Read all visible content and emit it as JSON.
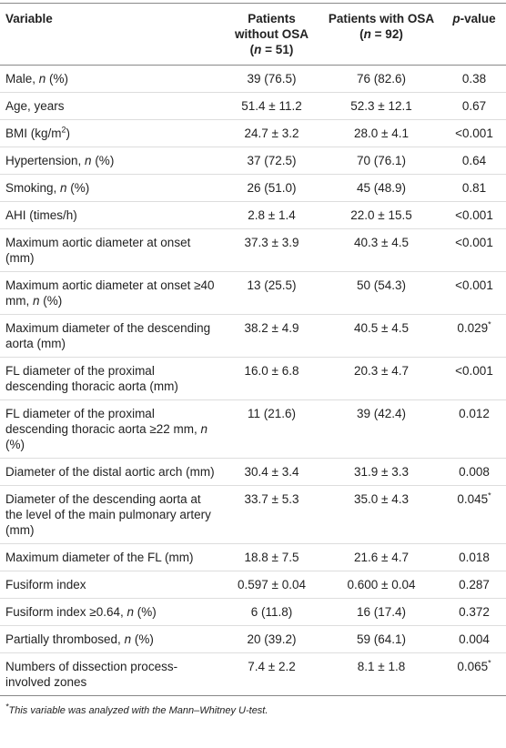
{
  "table": {
    "header": [
      [
        "Variable"
      ],
      [
        "Patients without OSA (",
        {
          "italic": "n"
        },
        " = 51)"
      ],
      [
        "Patients with OSA (",
        {
          "italic": "n"
        },
        " = 92)"
      ],
      [
        {
          "italic": "p"
        },
        "-value"
      ]
    ],
    "rows": [
      [
        [
          "Male, ",
          {
            "italic": "n"
          },
          " (%)"
        ],
        [
          "39 (76.5)"
        ],
        [
          "76 (82.6)"
        ],
        [
          "0.38"
        ]
      ],
      [
        [
          "Age, years"
        ],
        [
          "51.4 ± 11.2"
        ],
        [
          "52.3 ± 12.1"
        ],
        [
          "0.67"
        ]
      ],
      [
        [
          "BMI (kg/m",
          {
            "sup": "2"
          },
          ")"
        ],
        [
          "24.7 ± 3.2"
        ],
        [
          "28.0 ± 4.1"
        ],
        [
          "<0.001"
        ]
      ],
      [
        [
          "Hypertension, ",
          {
            "italic": "n"
          },
          " (%)"
        ],
        [
          "37 (72.5)"
        ],
        [
          "70 (76.1)"
        ],
        [
          "0.64"
        ]
      ],
      [
        [
          "Smoking, ",
          {
            "italic": "n"
          },
          " (%)"
        ],
        [
          "26 (51.0)"
        ],
        [
          "45 (48.9)"
        ],
        [
          "0.81"
        ]
      ],
      [
        [
          "AHI (times/h)"
        ],
        [
          "2.8 ± 1.4"
        ],
        [
          "22.0 ± 15.5"
        ],
        [
          "<0.001"
        ]
      ],
      [
        [
          "Maximum aortic diameter at onset (mm)"
        ],
        [
          "37.3 ± 3.9"
        ],
        [
          "40.3 ± 4.5"
        ],
        [
          "<0.001"
        ]
      ],
      [
        [
          "Maximum aortic diameter at onset ≥40 mm, ",
          {
            "italic": "n"
          },
          " (%)"
        ],
        [
          "13 (25.5)"
        ],
        [
          "50 (54.3)"
        ],
        [
          "<0.001"
        ]
      ],
      [
        [
          "Maximum diameter of the descending aorta (mm)"
        ],
        [
          "38.2 ± 4.9"
        ],
        [
          "40.5 ± 4.5"
        ],
        [
          "0.029",
          {
            "sup": "*"
          }
        ]
      ],
      [
        [
          "FL diameter of the proximal descending thoracic aorta (mm)"
        ],
        [
          "16.0 ± 6.8"
        ],
        [
          "20.3 ± 4.7"
        ],
        [
          "<0.001"
        ]
      ],
      [
        [
          "FL diameter of the proximal descending thoracic aorta ≥22 mm, ",
          {
            "italic": "n"
          },
          " (%)"
        ],
        [
          "11 (21.6)"
        ],
        [
          "39 (42.4)"
        ],
        [
          "0.012"
        ]
      ],
      [
        [
          "Diameter of the distal aortic arch (mm)"
        ],
        [
          "30.4 ± 3.4"
        ],
        [
          "31.9 ± 3.3"
        ],
        [
          "0.008"
        ]
      ],
      [
        [
          "Diameter of the descending aorta at the level of the main pulmonary artery (mm)"
        ],
        [
          "33.7 ± 5.3"
        ],
        [
          "35.0 ± 4.3"
        ],
        [
          "0.045",
          {
            "sup": "*"
          }
        ]
      ],
      [
        [
          "Maximum diameter of the FL (mm)"
        ],
        [
          "18.8 ± 7.5"
        ],
        [
          "21.6 ± 4.7"
        ],
        [
          "0.018"
        ]
      ],
      [
        [
          "Fusiform index"
        ],
        [
          "0.597 ± 0.04"
        ],
        [
          "0.600 ± 0.04"
        ],
        [
          "0.287"
        ]
      ],
      [
        [
          "Fusiform index ≥0.64, ",
          {
            "italic": "n"
          },
          " (%)"
        ],
        [
          "6 (11.8)"
        ],
        [
          "16 (17.4)"
        ],
        [
          "0.372"
        ]
      ],
      [
        [
          "Partially thrombosed, ",
          {
            "italic": "n"
          },
          " (%)"
        ],
        [
          "20 (39.2)"
        ],
        [
          "59 (64.1)"
        ],
        [
          "0.004"
        ]
      ],
      [
        [
          "Numbers of dissection process-involved zones"
        ],
        [
          "7.4 ± 2.2"
        ],
        [
          "8.1 ± 1.8"
        ],
        [
          "0.065",
          {
            "sup": "*"
          }
        ]
      ]
    ],
    "footnote": [
      {
        "sup": "*"
      },
      "This variable was analyzed with the Mann–Whitney U-test."
    ]
  }
}
